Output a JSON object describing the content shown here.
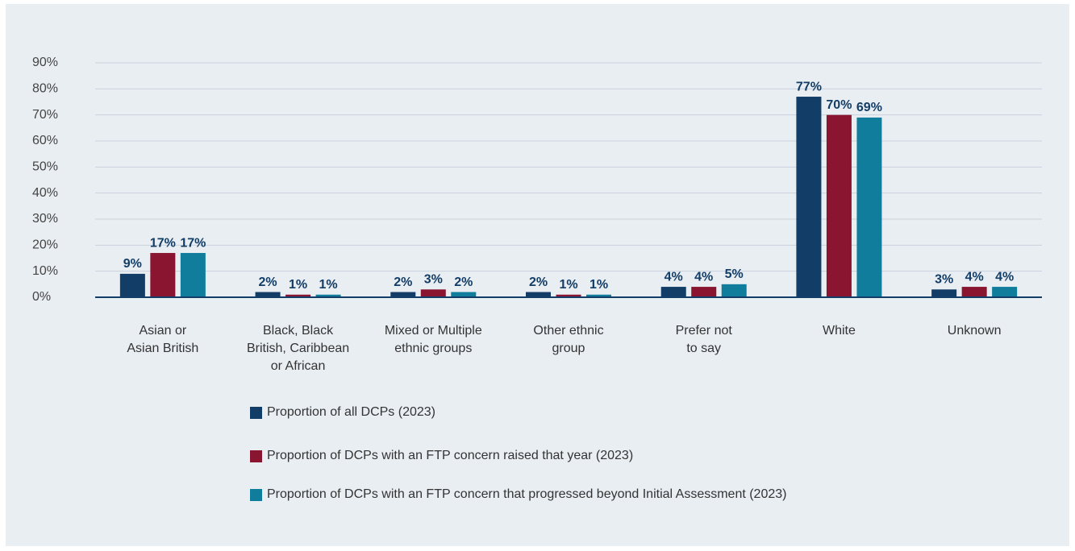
{
  "chart_data": {
    "type": "bar",
    "categories": [
      "Asian or\nAsian British",
      "Black, Black\nBritish, Caribbean\nor African",
      "Mixed or Multiple\nethnic groups",
      "Other ethnic\ngroup",
      "Prefer not\nto say",
      "White",
      "Unknown"
    ],
    "series": [
      {
        "name": "Proportion of all DCPs (2023)",
        "color": "#123d66",
        "values": [
          9,
          2,
          2,
          2,
          4,
          77,
          3
        ],
        "value_labels": [
          "9%",
          "2%",
          "2%",
          "2%",
          "4%",
          "77%",
          "3%"
        ]
      },
      {
        "name": "Proportion of DCPs with an FTP concern raised that year (2023)",
        "color": "#8a1530",
        "values": [
          17,
          1,
          3,
          1,
          4,
          70,
          4
        ],
        "value_labels": [
          "17%",
          "1%",
          "3%",
          "1%",
          "4%",
          "70%",
          "4%"
        ]
      },
      {
        "name": "Proportion of DCPs with an FTP concern that progressed beyond Initial Assessment (2023)",
        "color": "#0f7d9b",
        "values": [
          17,
          1,
          2,
          1,
          5,
          69,
          4
        ],
        "value_labels": [
          "17%",
          "1%",
          "2%",
          "1%",
          "5%",
          "69%",
          "4%"
        ]
      }
    ],
    "ylim": [
      0,
      90
    ],
    "yticks": [
      {
        "value": 0,
        "label": "0%"
      },
      {
        "value": 10,
        "label": "10%"
      },
      {
        "value": 20,
        "label": "20%"
      },
      {
        "value": 30,
        "label": "30%"
      },
      {
        "value": 40,
        "label": "40%"
      },
      {
        "value": 50,
        "label": "50%"
      },
      {
        "value": 60,
        "label": "60%"
      },
      {
        "value": 70,
        "label": "70%"
      },
      {
        "value": 80,
        "label": "80%"
      },
      {
        "value": 90,
        "label": "90%"
      }
    ],
    "grid": true
  }
}
